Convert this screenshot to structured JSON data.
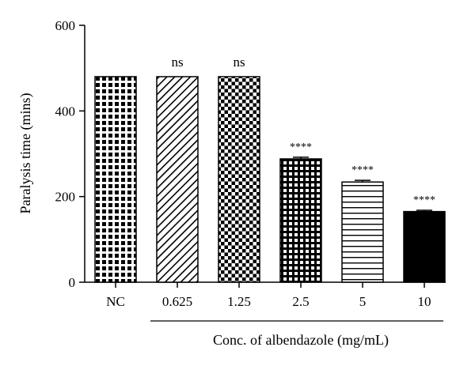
{
  "chart_data": {
    "type": "bar",
    "categories": [
      "NC",
      "0.625",
      "1.25",
      "2.5",
      "5",
      "10"
    ],
    "values": [
      480,
      480,
      480,
      288,
      234,
      165
    ],
    "errors": [
      0,
      0,
      0,
      4,
      4,
      3
    ],
    "significance": [
      "",
      "ns",
      "ns",
      "****",
      "****",
      "****"
    ],
    "patterns": [
      "grid-large",
      "diagonal",
      "checker",
      "grid-small",
      "horizontal-lines",
      "solid"
    ],
    "ylabel": "Paralysis time (mins)",
    "xlabel": "Conc. of albendazole (mg/mL)",
    "ylim": [
      0,
      600
    ],
    "yticks": [
      0,
      200,
      400,
      600
    ],
    "bar_color": "#000000",
    "grid": false
  }
}
